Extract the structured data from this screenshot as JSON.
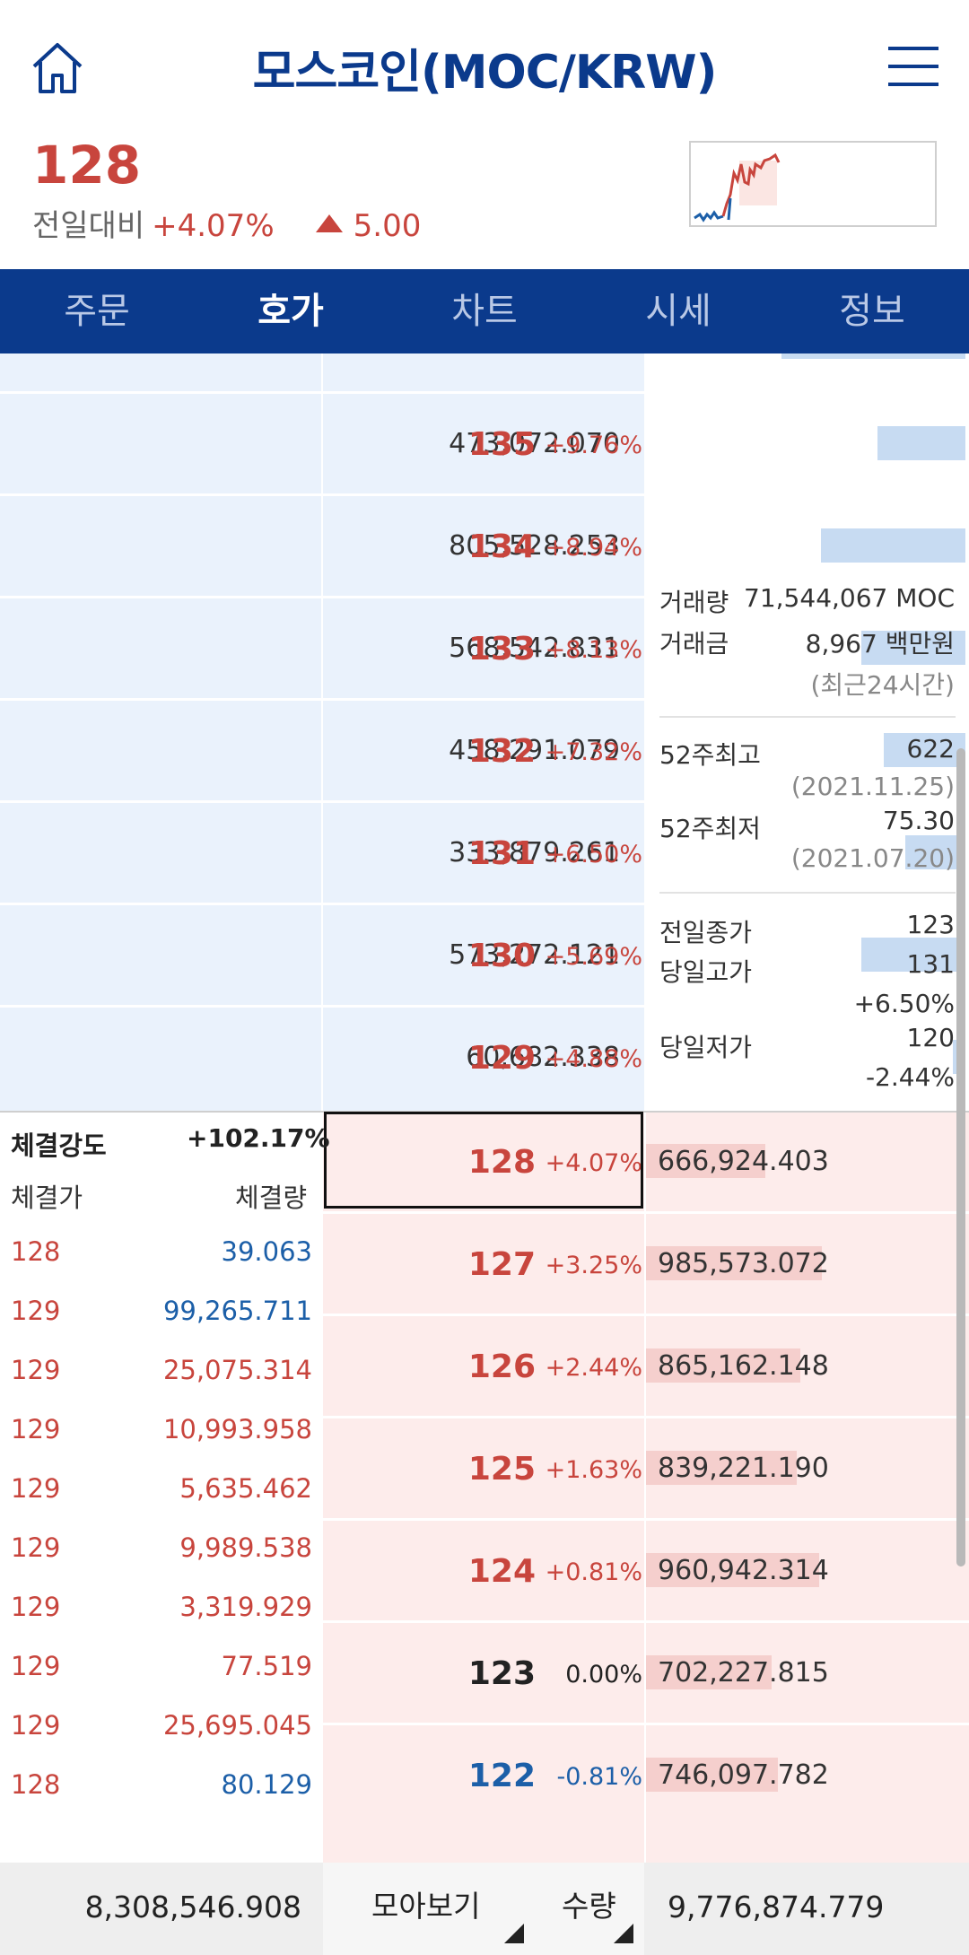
{
  "header": {
    "title": "모스코인(MOC/KRW)",
    "price": "128",
    "change_label": "전일대비",
    "change_pct": "+4.07%",
    "change_amount": "5.00"
  },
  "tabs": [
    {
      "label": "주문"
    },
    {
      "label": "호가"
    },
    {
      "label": "차트"
    },
    {
      "label": "시세"
    },
    {
      "label": "정보"
    }
  ],
  "asks": [
    {
      "qty": "473,072.070",
      "price": "135",
      "pct": "+9.76%",
      "bar": 0.28
    },
    {
      "qty": "805,528.253",
      "price": "134",
      "pct": "+8.94%",
      "bar": 0.46
    },
    {
      "qty": "568,542.831",
      "price": "133",
      "pct": "+8.13%",
      "bar": 0.33
    },
    {
      "qty": "458,291.079",
      "price": "132",
      "pct": "+7.32%",
      "bar": 0.26
    },
    {
      "qty": "333,879.261",
      "price": "131",
      "pct": "+6.50%",
      "bar": 0.19
    },
    {
      "qty": "573,272.121",
      "price": "130",
      "pct": "+5.69%",
      "bar": 0.33
    },
    {
      "qty": "60,682.338",
      "price": "129",
      "pct": "+4.88%",
      "bar": 0.04
    }
  ],
  "bids": [
    {
      "qty": "666,924.403",
      "price": "128",
      "pct": "+4.07%",
      "bar": 0.38,
      "tone": "up"
    },
    {
      "qty": "985,573.072",
      "price": "127",
      "pct": "+3.25%",
      "bar": 0.56,
      "tone": "up"
    },
    {
      "qty": "865,162.148",
      "price": "126",
      "pct": "+2.44%",
      "bar": 0.49,
      "tone": "up"
    },
    {
      "qty": "839,221.190",
      "price": "125",
      "pct": "+1.63%",
      "bar": 0.48,
      "tone": "up"
    },
    {
      "qty": "960,942.314",
      "price": "124",
      "pct": "+0.81%",
      "bar": 0.55,
      "tone": "up"
    },
    {
      "qty": "702,227.815",
      "price": "123",
      "pct": "0.00%",
      "bar": 0.4,
      "tone": "flat"
    },
    {
      "qty": "746,097.782",
      "price": "122",
      "pct": "-0.81%",
      "bar": 0.42,
      "tone": "down"
    }
  ],
  "info": {
    "volume_label": "거래량",
    "volume_value": "71,544,067 MOC",
    "amount_label": "거래금",
    "amount_value": "8,967 백만원",
    "period_note": "(최근24시간)",
    "high52_label": "52주최고",
    "high52_value": "622",
    "high52_date": "(2021.11.25)",
    "low52_label": "52주최저",
    "low52_value": "75.30",
    "low52_date": "(2021.07.20)",
    "prev_close_label": "전일종가",
    "prev_close_value": "123",
    "day_high_label": "당일고가",
    "day_high_value": "131",
    "day_high_pct": "+6.50%",
    "day_low_label": "당일저가",
    "day_low_value": "120",
    "day_low_pct": "-2.44%"
  },
  "strength": {
    "label": "체결강도",
    "value": "+102.17%",
    "col_price": "체결가",
    "col_qty": "체결량",
    "trades": [
      {
        "price": "128",
        "qty": "39.063",
        "tone": "down"
      },
      {
        "price": "129",
        "qty": "99,265.711",
        "tone": "down"
      },
      {
        "price": "129",
        "qty": "25,075.314",
        "tone": "up"
      },
      {
        "price": "129",
        "qty": "10,993.958",
        "tone": "up"
      },
      {
        "price": "129",
        "qty": "5,635.462",
        "tone": "up"
      },
      {
        "price": "129",
        "qty": "9,989.538",
        "tone": "up"
      },
      {
        "price": "129",
        "qty": "3,319.929",
        "tone": "up"
      },
      {
        "price": "129",
        "qty": "77.519",
        "tone": "up"
      },
      {
        "price": "129",
        "qty": "25,695.045",
        "tone": "up"
      },
      {
        "price": "128",
        "qty": "80.129",
        "tone": "down"
      }
    ]
  },
  "footer": {
    "total_ask": "8,308,546.908",
    "group_button": "모아보기",
    "qty_button": "수량",
    "total_bid": "9,776,874.779"
  },
  "colors": {
    "brand": "#0b3a8c",
    "up": "#c8453d",
    "down": "#1c5fa8",
    "ask_bg": "#eaf2fc",
    "bid_bg": "#fdeceb"
  },
  "icons": {
    "home": "home-icon",
    "menu": "hamburger-menu-icon"
  }
}
